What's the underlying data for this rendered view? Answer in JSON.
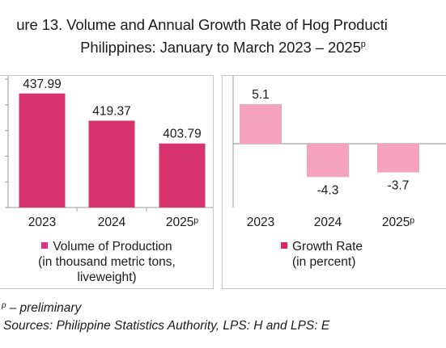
{
  "title": {
    "line1": "ure 13. Volume and Annual Growth Rate of Hog Producti",
    "line2_prefix": "Philippines: January to March 2023 – 2025",
    "line2_sup": "p"
  },
  "colors": {
    "volume": "#d6336c",
    "growth": "#f4a2bd",
    "volume_legend": "#d63384",
    "growth_legend": "#e0245e"
  },
  "chart_data": [
    {
      "type": "bar",
      "categories": [
        "2023",
        "2024",
        "2025ᵖ"
      ],
      "values": [
        437.99,
        419.37,
        403.79
      ],
      "data_labels": [
        "437.99",
        "419.37",
        "403.79"
      ],
      "legend": "Volume of Production (in thousand metric tons, liveweight)",
      "legend_lines": [
        "Volume of Production",
        "(in thousand metric tons,",
        "liveweight)"
      ],
      "ylim": [
        360,
        450
      ]
    },
    {
      "type": "bar",
      "categories": [
        "2023",
        "2024",
        "2025ᵖ"
      ],
      "values": [
        5.1,
        -4.3,
        -3.7
      ],
      "data_labels": [
        "5.1",
        "-4.3",
        "-3.7"
      ],
      "legend": "Growth Rate (in percent)",
      "legend_lines": [
        "Growth Rate",
        "(in percent)"
      ],
      "ylim": [
        -6,
        6
      ]
    }
  ],
  "footnotes": {
    "preliminary_sup": "p",
    "preliminary": "– preliminary",
    "sources": "Sources: Philippine Statistics Authority, LPS: H and LPS: E"
  }
}
